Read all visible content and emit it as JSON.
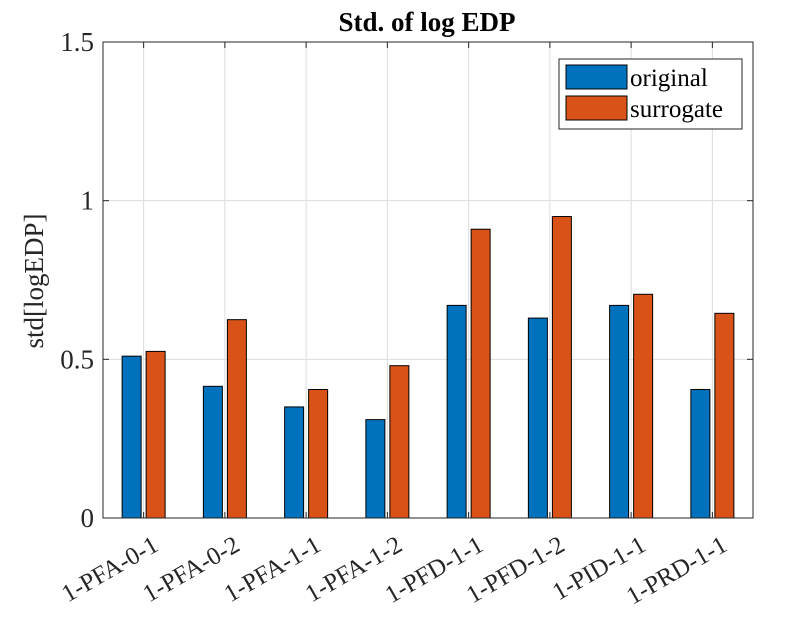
{
  "chart_data": {
    "type": "bar",
    "title": "Std. of log EDP",
    "xlabel": "",
    "ylabel": "std[logEDP]",
    "ylim": [
      0,
      1.5
    ],
    "yticks": [
      0,
      0.5,
      1,
      1.5
    ],
    "ytick_labels": [
      "0",
      "0.5",
      "1",
      "1.5"
    ],
    "grid": true,
    "legend_position": "top-right",
    "categories": [
      "1-PFA-0-1",
      "1-PFA-0-2",
      "1-PFA-1-1",
      "1-PFA-1-2",
      "1-PFD-1-1",
      "1-PFD-1-2",
      "1-PID-1-1",
      "1-PRD-1-1"
    ],
    "series": [
      {
        "name": "original",
        "color": "#0072BD",
        "values": [
          0.51,
          0.415,
          0.35,
          0.31,
          0.67,
          0.63,
          0.67,
          0.405
        ]
      },
      {
        "name": "surrogate",
        "color": "#D95319",
        "values": [
          0.525,
          0.625,
          0.405,
          0.48,
          0.91,
          0.95,
          0.705,
          0.645
        ]
      }
    ]
  }
}
